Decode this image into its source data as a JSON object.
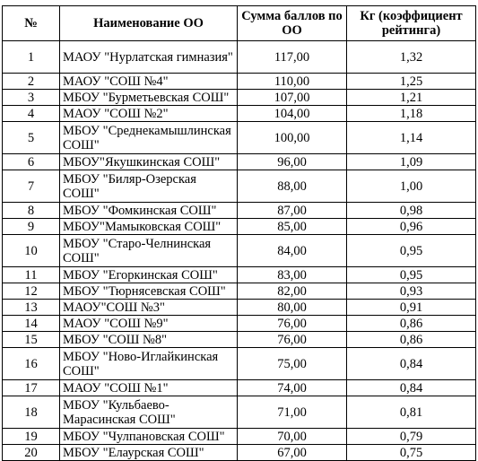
{
  "table": {
    "headers": {
      "num": "№",
      "name": "Наименование ОО",
      "score": "Сумма баллов по ОО",
      "coef": "Кг (коэффициент рейтинга)"
    },
    "rows": [
      {
        "num": "1",
        "name": "МАОУ \"Нурлатская гимназия\"",
        "score": "117,00",
        "coef": "1,32"
      },
      {
        "num": "2",
        "name": "МАОУ \"СОШ №4\"",
        "score": "110,00",
        "coef": "1,25"
      },
      {
        "num": "3",
        "name": "МБОУ \"Бурметьевская СОШ\"",
        "score": "107,00",
        "coef": "1,21"
      },
      {
        "num": "4",
        "name": "МАОУ \"СОШ №2\"",
        "score": "104,00",
        "coef": "1,18"
      },
      {
        "num": "5",
        "name": "МБОУ \"Среднекамышлинская СОШ\"",
        "score": "100,00",
        "coef": "1,14"
      },
      {
        "num": "6",
        "name": "МБОУ\"Якушкинская СОШ\"",
        "score": "96,00",
        "coef": "1,09"
      },
      {
        "num": "7",
        "name": "МБОУ \"Биляр-Озерская СОШ\"",
        "score": "88,00",
        "coef": "1,00"
      },
      {
        "num": "8",
        "name": "МБОУ \"Фомкинская СОШ\"",
        "score": "87,00",
        "coef": "0,98"
      },
      {
        "num": "9",
        "name": "МБОУ\"Мамыковская СОШ\"",
        "score": "85,00",
        "coef": "0,96"
      },
      {
        "num": "10",
        "name": "МБОУ \"Старо-Челнинская СОШ\"",
        "score": "84,00",
        "coef": "0,95"
      },
      {
        "num": "11",
        "name": "МБОУ \"Егоркинская СОШ\"",
        "score": "83,00",
        "coef": "0,95"
      },
      {
        "num": "12",
        "name": "МБОУ \"Тюрнясевская СОШ\"",
        "score": "82,00",
        "coef": "0,93"
      },
      {
        "num": "13",
        "name": "МАОУ\"СОШ №3\"",
        "score": "80,00",
        "coef": "0,91"
      },
      {
        "num": "14",
        "name": "МАОУ \"СОШ №9\"",
        "score": "76,00",
        "coef": "0,86"
      },
      {
        "num": "15",
        "name": "МБОУ \"СОШ №8\"",
        "score": "76,00",
        "coef": "0,86"
      },
      {
        "num": "16",
        "name": "МБОУ \"Ново-Иглайкинская СОШ\"",
        "score": "75,00",
        "coef": "0,84"
      },
      {
        "num": "17",
        "name": "МАОУ \"СОШ №1\"",
        "score": "74,00",
        "coef": "0,84"
      },
      {
        "num": "18",
        "name": "МБОУ \"Кульбаево-Марасинская СОШ\"",
        "score": "71,00",
        "coef": "0,81"
      },
      {
        "num": "19",
        "name": "МБОУ \"Чулпановская СОШ\"",
        "score": "70,00",
        "coef": "0,79"
      },
      {
        "num": "20",
        "name": "МБОУ \"Елаурская СОШ\"",
        "score": "67,00",
        "coef": "0,75"
      }
    ]
  }
}
